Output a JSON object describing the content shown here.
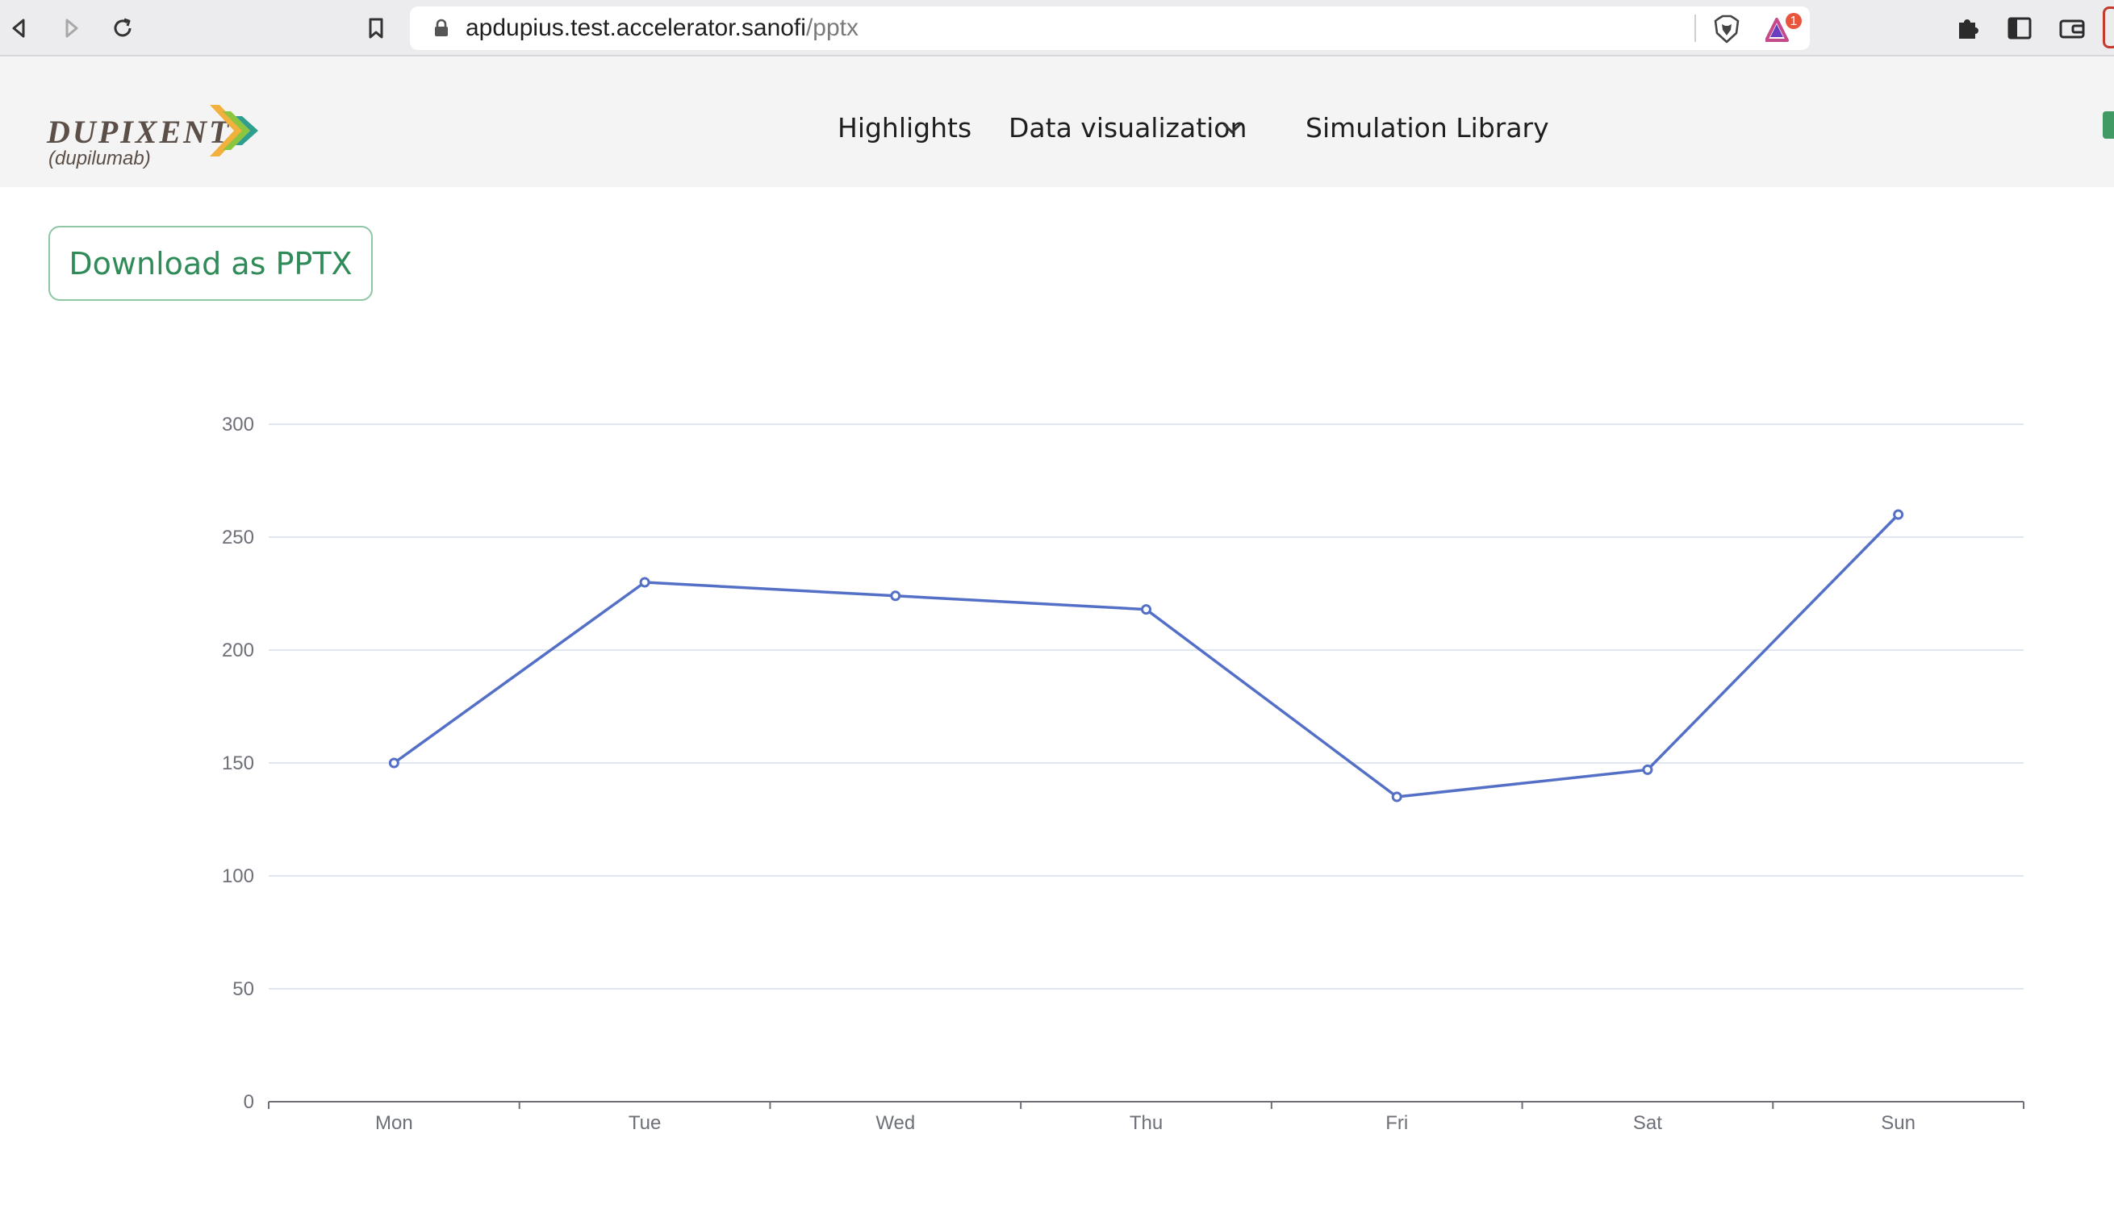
{
  "browser": {
    "url_host": "apdupius.test.accelerator.sanofi",
    "url_path": "/pptx",
    "rewards_badge": "1"
  },
  "header": {
    "logo_word": "DUPIXENT",
    "logo_sub": "(dupilumab)",
    "nav": {
      "highlights": "Highlights",
      "data_visualization": "Data visualization",
      "simulation_library": "Simulation Library"
    }
  },
  "page": {
    "download_button": "Download as PPTX"
  },
  "colors": {
    "line": "#5470c6",
    "accent_green": "#2f8b58",
    "grid": "#e0e6f1",
    "axis": "#6e7079"
  },
  "chart_data": {
    "type": "line",
    "title": "",
    "xlabel": "",
    "ylabel": "",
    "categories": [
      "Mon",
      "Tue",
      "Wed",
      "Thu",
      "Fri",
      "Sat",
      "Sun"
    ],
    "series": [
      {
        "values": [
          150,
          230,
          224,
          218,
          135,
          147,
          260
        ]
      }
    ],
    "ylim": [
      0,
      300
    ],
    "yticks": [
      0,
      50,
      100,
      150,
      200,
      250,
      300
    ],
    "grid": true,
    "legend": "none"
  }
}
